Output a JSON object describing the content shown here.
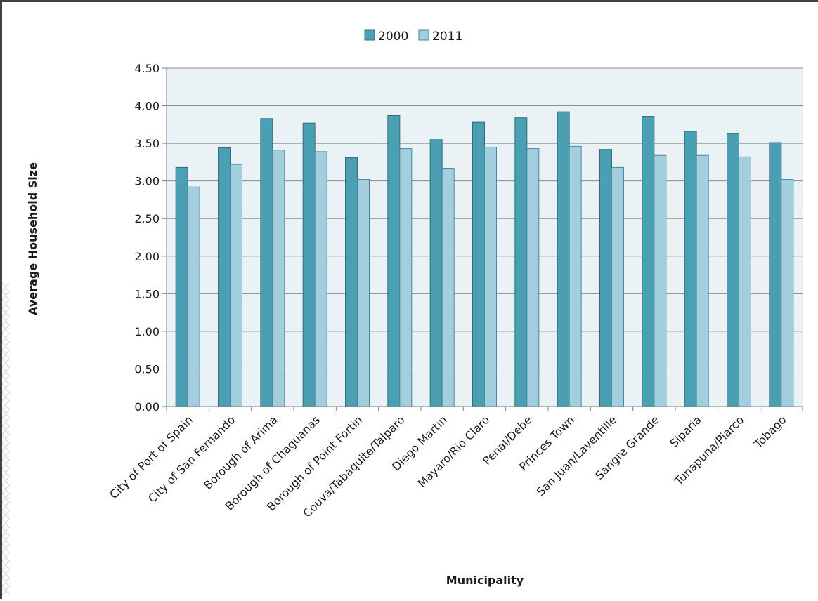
{
  "chart_data": {
    "type": "bar",
    "title": "",
    "xlabel": "Municipality",
    "ylabel": "Average Household Size",
    "ylim": [
      0,
      4.5
    ],
    "ytick_step": 0.5,
    "grid": true,
    "legend_position": "top-center",
    "plot_background": "#eaf2f5",
    "categories": [
      "City of Port of Spain",
      "City of San Fernando",
      "Borough of Arima",
      "Borough of Chaguanas",
      "Borough of Point Fortin",
      "Couva/Tabaquite/Talparo",
      "Diego Martin",
      "Mayaro/Rio Claro",
      "Penal/Debe",
      "Princes Town",
      "San Juan/Laventille",
      "Sangre Grande",
      "Siparia",
      "Tunapuna/Piarco",
      "Tobago"
    ],
    "series": [
      {
        "name": "2000",
        "color": "#4a9fb3",
        "values": [
          3.18,
          3.44,
          3.83,
          3.77,
          3.31,
          3.87,
          3.55,
          3.78,
          3.84,
          3.92,
          3.42,
          3.86,
          3.66,
          3.63,
          3.51
        ]
      },
      {
        "name": "2011",
        "color": "#a2cedd",
        "values": [
          2.92,
          3.22,
          3.41,
          3.39,
          3.02,
          3.43,
          3.17,
          3.45,
          3.43,
          3.46,
          3.18,
          3.34,
          3.34,
          3.32,
          3.02
        ]
      }
    ]
  }
}
